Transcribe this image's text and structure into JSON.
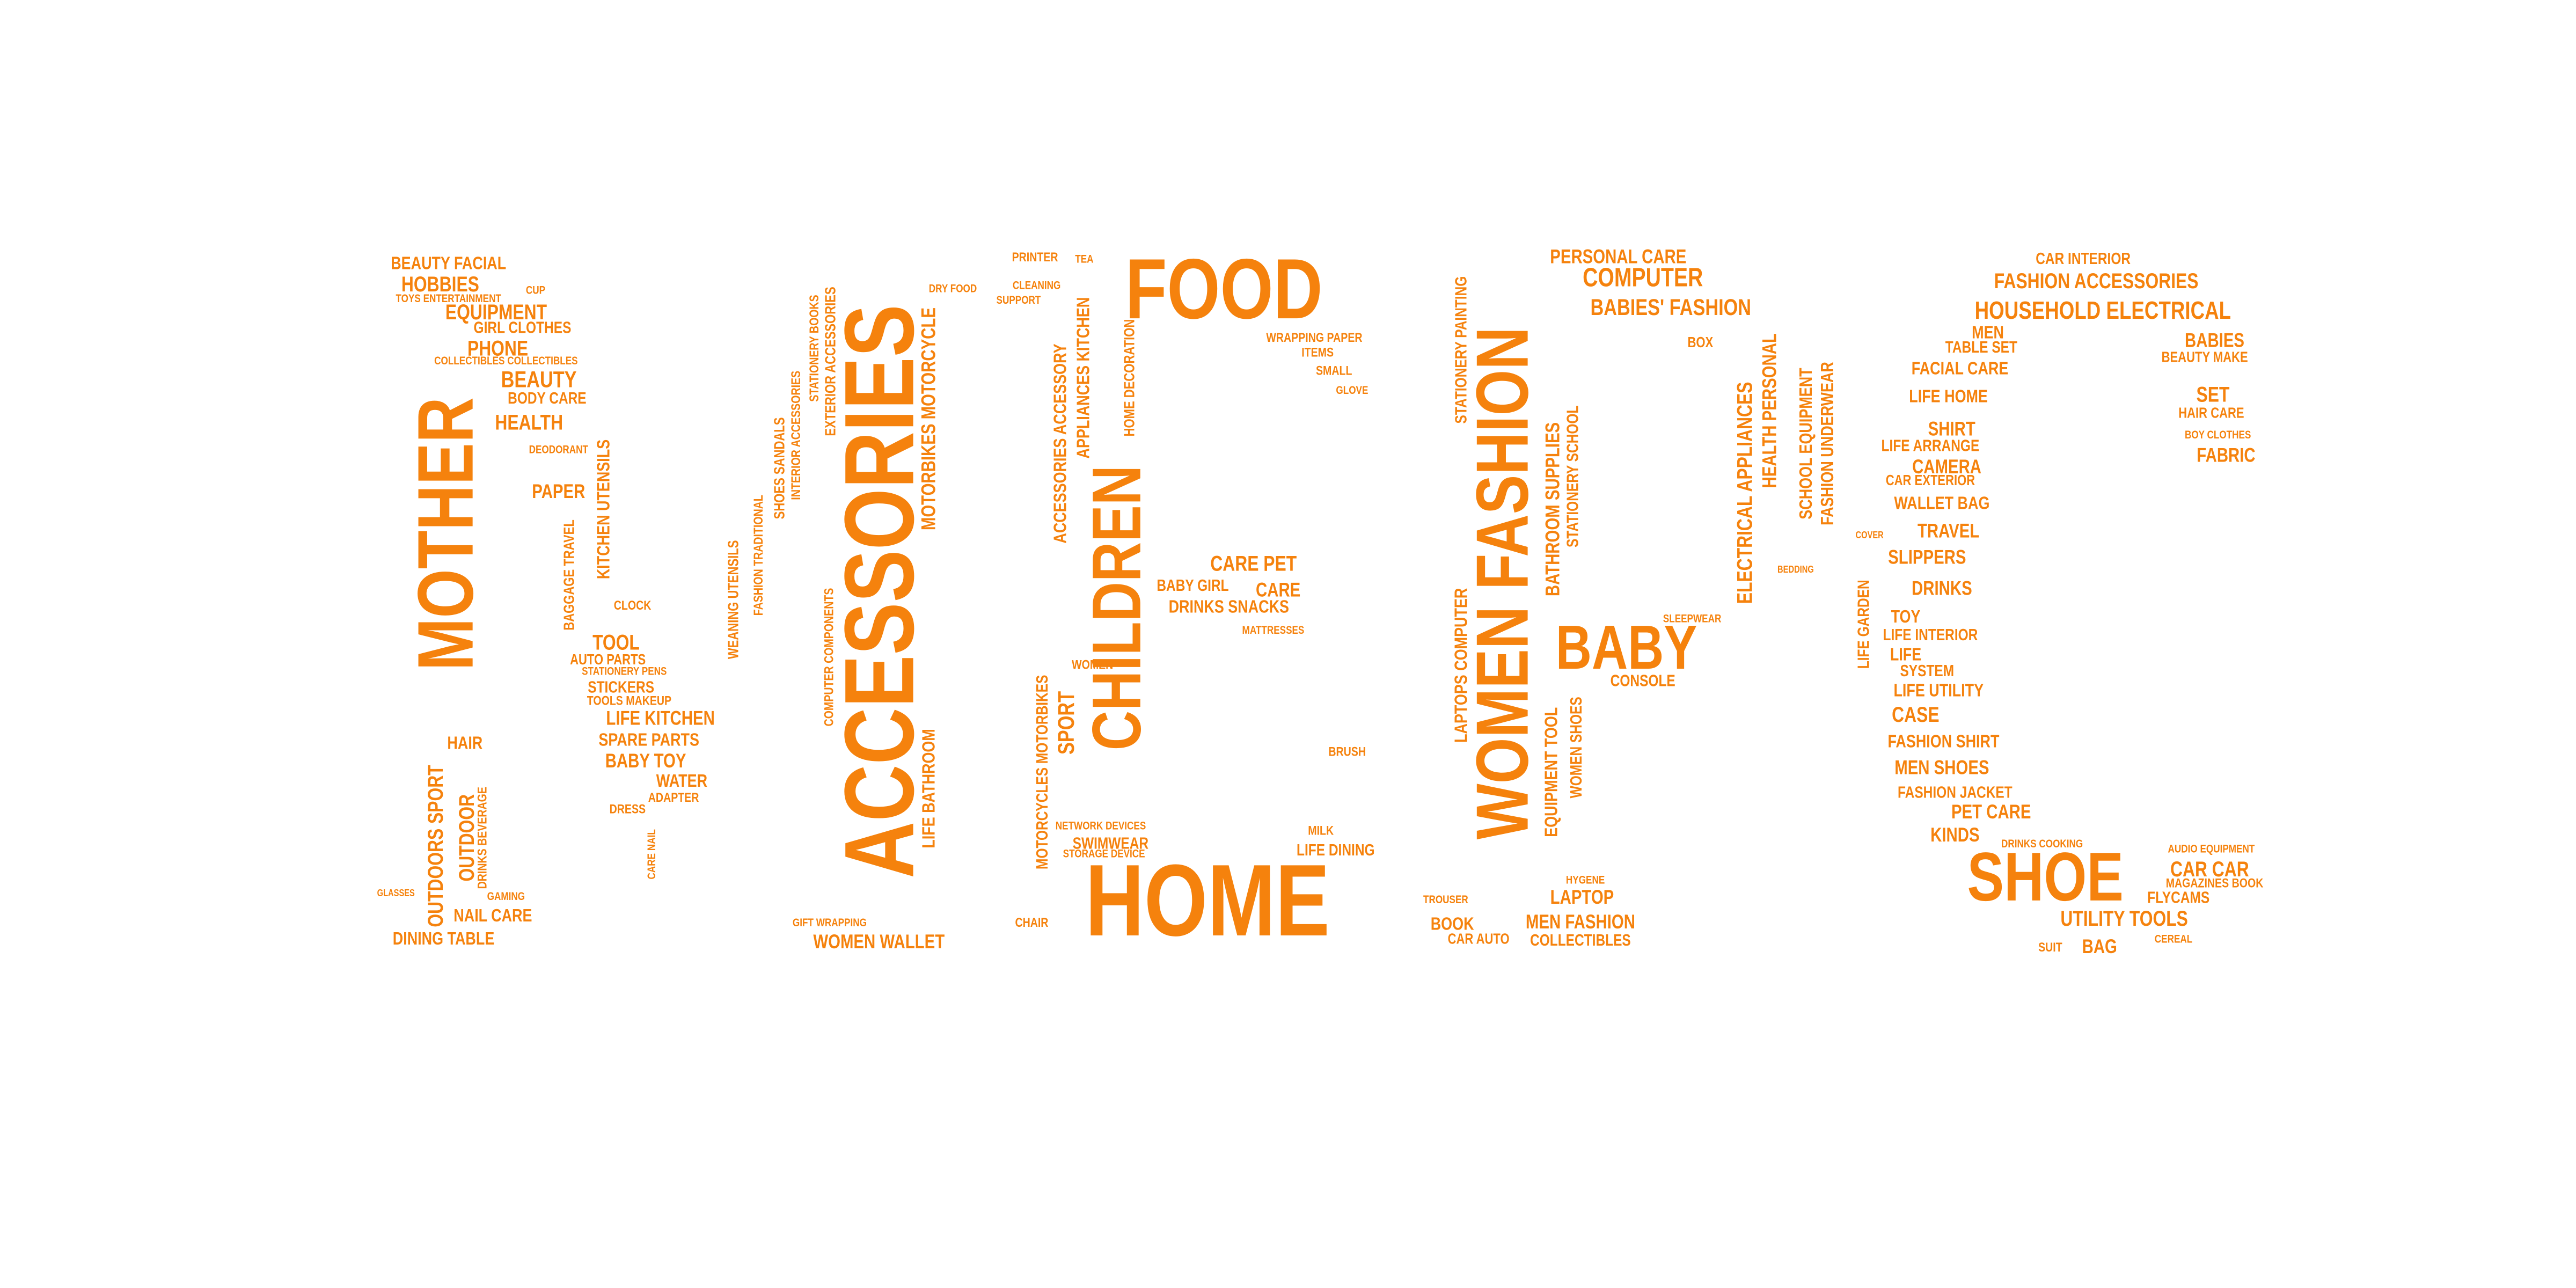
{
  "chart_data": {
    "type": "wordcloud",
    "color": "#f5820d",
    "words": [
      {
        "text": "MOTHER",
        "value": 48
      },
      {
        "text": "ACCESSORIES",
        "value": 60
      },
      {
        "text": "CHILDREN",
        "value": 42
      },
      {
        "text": "FOOD",
        "value": 52
      },
      {
        "text": "HOME",
        "value": 62
      },
      {
        "text": "WOMEN FASHION",
        "value": 45
      },
      {
        "text": "BABY",
        "value": 38
      },
      {
        "text": "SHOE",
        "value": 42
      },
      {
        "text": "COMPUTER",
        "value": 16
      },
      {
        "text": "BABIES' FASHION",
        "value": 14
      },
      {
        "text": "PERSONAL CARE",
        "value": 12
      },
      {
        "text": "HOUSEHOLD ELECTRICAL",
        "value": 15
      },
      {
        "text": "FASHION ACCESSORIES",
        "value": 13
      },
      {
        "text": "CAR INTERIOR",
        "value": 10
      },
      {
        "text": "BEAUTY FACIAL",
        "value": 11
      },
      {
        "text": "HOBBIES",
        "value": 13
      },
      {
        "text": "EQUIPMENT",
        "value": 13
      },
      {
        "text": "PHONE",
        "value": 13
      },
      {
        "text": "BEAUTY",
        "value": 14
      },
      {
        "text": "HEALTH",
        "value": 13
      },
      {
        "text": "PAPER",
        "value": 12
      },
      {
        "text": "LIFE KITCHEN",
        "value": 12
      },
      {
        "text": "TOOL",
        "value": 13
      },
      {
        "text": "SPARE PARTS",
        "value": 11
      },
      {
        "text": "BABY TOY",
        "value": 12
      },
      {
        "text": "WATER",
        "value": 11
      },
      {
        "text": "DINING TABLE",
        "value": 11
      },
      {
        "text": "NAIL CARE",
        "value": 11
      },
      {
        "text": "WOMEN WALLET",
        "value": 12
      },
      {
        "text": "DRINKS SNACKS",
        "value": 11
      },
      {
        "text": "CARE PET",
        "value": 13
      },
      {
        "text": "LAPTOP",
        "value": 12
      },
      {
        "text": "MEN FASHION",
        "value": 12
      },
      {
        "text": "COLLECTIBLES",
        "value": 10
      },
      {
        "text": "BOOK",
        "value": 11
      },
      {
        "text": "TRAVEL",
        "value": 12
      },
      {
        "text": "CAMERA",
        "value": 12
      },
      {
        "text": "SHIRT",
        "value": 12
      },
      {
        "text": "DRINKS",
        "value": 12
      },
      {
        "text": "SLIPPERS",
        "value": 12
      },
      {
        "text": "CASE",
        "value": 13
      },
      {
        "text": "FASHION SHIRT",
        "value": 11
      },
      {
        "text": "MEN SHOES",
        "value": 12
      },
      {
        "text": "FASHION JACKET",
        "value": 10
      },
      {
        "text": "PET CARE",
        "value": 12
      },
      {
        "text": "KINDS",
        "value": 12
      },
      {
        "text": "UTILITY TOOLS",
        "value": 13
      },
      {
        "text": "CAR CAR",
        "value": 13
      },
      {
        "text": "FLYCAMS",
        "value": 10
      },
      {
        "text": "BAG",
        "value": 12
      },
      {
        "text": "SET",
        "value": 13
      },
      {
        "text": "FABRIC",
        "value": 12
      },
      {
        "text": "BABIES",
        "value": 12
      },
      {
        "text": "SWIMWEAR",
        "value": 10
      },
      {
        "text": "LIFE DINING",
        "value": 10
      },
      {
        "text": "OUTDOORS SPORT",
        "value": 13
      },
      {
        "text": "OUTDOOR",
        "value": 13
      },
      {
        "text": "MOTORBIKES MOTORCYCLE",
        "value": 12
      },
      {
        "text": "LIFE BATHROOM",
        "value": 11
      },
      {
        "text": "ELECTRICAL APPLIANCES",
        "value": 13
      },
      {
        "text": "STATIONERY PAINTING",
        "value": 10
      },
      {
        "text": "LAPTOPS COMPUTER",
        "value": 11
      },
      {
        "text": "BATHROOM SUPPLIES",
        "value": 12
      },
      {
        "text": "EQUIPMENT TOOL",
        "value": 11
      },
      {
        "text": "SPORT",
        "value": 14
      },
      {
        "text": "MOTORCYCLES MOTORBIKES",
        "value": 10
      },
      {
        "text": "HEALTH PERSONAL",
        "value": 12
      },
      {
        "text": "SCHOOL EQUIPMENT",
        "value": 11
      },
      {
        "text": "FASHION UNDERWEAR",
        "value": 11
      },
      {
        "text": "KITCHEN UTENSILS",
        "value": 11
      },
      {
        "text": "APPLIANCES KITCHEN",
        "value": 11
      },
      {
        "text": "HOME DECORATION",
        "value": 9
      },
      {
        "text": "STATIONERY SCHOOL",
        "value": 10
      },
      {
        "text": "WOMEN SHOES",
        "value": 10
      },
      {
        "text": "ACCESSORIES ACCESSORY",
        "value": 11
      },
      {
        "text": "SHOES SANDALS",
        "value": 9
      },
      {
        "text": "EXTERIOR ACCESSORIES",
        "value": 9
      },
      {
        "text": "COMPUTER COMPONENTS",
        "value": 8
      },
      {
        "text": "LIFE GARDEN",
        "value": 10
      },
      {
        "text": "TOYS ENTERTAINMENT",
        "value": 7
      },
      {
        "text": "GIRL CLOTHES",
        "value": 10
      },
      {
        "text": "COLLECTIBLES COLLECTIBLES",
        "value": 7
      },
      {
        "text": "BODY CARE",
        "value": 10
      },
      {
        "text": "DEODORANT",
        "value": 7
      },
      {
        "text": "CUP",
        "value": 7
      },
      {
        "text": "AUTO PARTS",
        "value": 9
      },
      {
        "text": "STATIONERY PENS",
        "value": 7
      },
      {
        "text": "STICKERS",
        "value": 10
      },
      {
        "text": "TOOLS MAKEUP",
        "value": 8
      },
      {
        "text": "CLOCK",
        "value": 8
      },
      {
        "text": "ADAPTER",
        "value": 8
      },
      {
        "text": "DRESS",
        "value": 8
      },
      {
        "text": "HAIR",
        "value": 11
      },
      {
        "text": "GLASSES",
        "value": 6
      },
      {
        "text": "GAMING",
        "value": 7
      },
      {
        "text": "GIFT WRAPPING",
        "value": 7
      },
      {
        "text": "PRINTER",
        "value": 8
      },
      {
        "text": "TEA",
        "value": 7
      },
      {
        "text": "CLEANING",
        "value": 7
      },
      {
        "text": "SUPPORT",
        "value": 7
      },
      {
        "text": "DRY FOOD",
        "value": 7
      },
      {
        "text": "WRAPPING PAPER",
        "value": 8
      },
      {
        "text": "ITEMS",
        "value": 8
      },
      {
        "text": "SMALL",
        "value": 8
      },
      {
        "text": "GLOVE",
        "value": 7
      },
      {
        "text": "BABY GIRL",
        "value": 10
      },
      {
        "text": "CARE",
        "value": 12
      },
      {
        "text": "MATTRESSES",
        "value": 7
      },
      {
        "text": "WOMEN",
        "value": 8
      },
      {
        "text": "NETWORK DEVICES",
        "value": 7
      },
      {
        "text": "STORAGE DEVICE",
        "value": 7
      },
      {
        "text": "BRUSH",
        "value": 8
      },
      {
        "text": "MILK",
        "value": 8
      },
      {
        "text": "CHAIR",
        "value": 8
      },
      {
        "text": "CAR AUTO",
        "value": 9
      },
      {
        "text": "TROUSER",
        "value": 7
      },
      {
        "text": "HYGENE",
        "value": 7
      },
      {
        "text": "CONSOLE",
        "value": 10
      },
      {
        "text": "BOX",
        "value": 9
      },
      {
        "text": "SLEEPWEAR",
        "value": 7
      },
      {
        "text": "MEN",
        "value": 11
      },
      {
        "text": "TABLE SET",
        "value": 10
      },
      {
        "text": "FACIAL CARE",
        "value": 11
      },
      {
        "text": "LIFE HOME",
        "value": 11
      },
      {
        "text": "LIFE ARRANGE",
        "value": 10
      },
      {
        "text": "CAR EXTERIOR",
        "value": 9
      },
      {
        "text": "WALLET BAG",
        "value": 11
      },
      {
        "text": "TOY",
        "value": 11
      },
      {
        "text": "LIFE INTERIOR",
        "value": 10
      },
      {
        "text": "LIFE",
        "value": 11
      },
      {
        "text": "SYSTEM",
        "value": 10
      },
      {
        "text": "LIFE UTILITY",
        "value": 11
      },
      {
        "text": "BEAUTY MAKE",
        "value": 9
      },
      {
        "text": "HAIR CARE",
        "value": 9
      },
      {
        "text": "BOY CLOTHES",
        "value": 7
      },
      {
        "text": "AUDIO EQUIPMENT",
        "value": 7
      },
      {
        "text": "MAGAZINES BOOK",
        "value": 8
      },
      {
        "text": "CEREAL",
        "value": 7
      },
      {
        "text": "SUIT",
        "value": 8
      },
      {
        "text": "DRINKS COOKING",
        "value": 7
      },
      {
        "text": "COVER",
        "value": 6
      },
      {
        "text": "BEDDING",
        "value": 6
      },
      {
        "text": "BAGGAGE TRAVEL",
        "value": 9
      },
      {
        "text": "WEANING UTENSILS",
        "value": 9
      },
      {
        "text": "FASHION TRADITIONAL",
        "value": 8
      },
      {
        "text": "INTERIOR ACCESSORIES",
        "value": 8
      },
      {
        "text": "STATIONERY BOOKS",
        "value": 8
      },
      {
        "text": "DRINKS BEVERAGE",
        "value": 8
      },
      {
        "text": "CARE NAIL",
        "value": 7
      }
    ]
  }
}
